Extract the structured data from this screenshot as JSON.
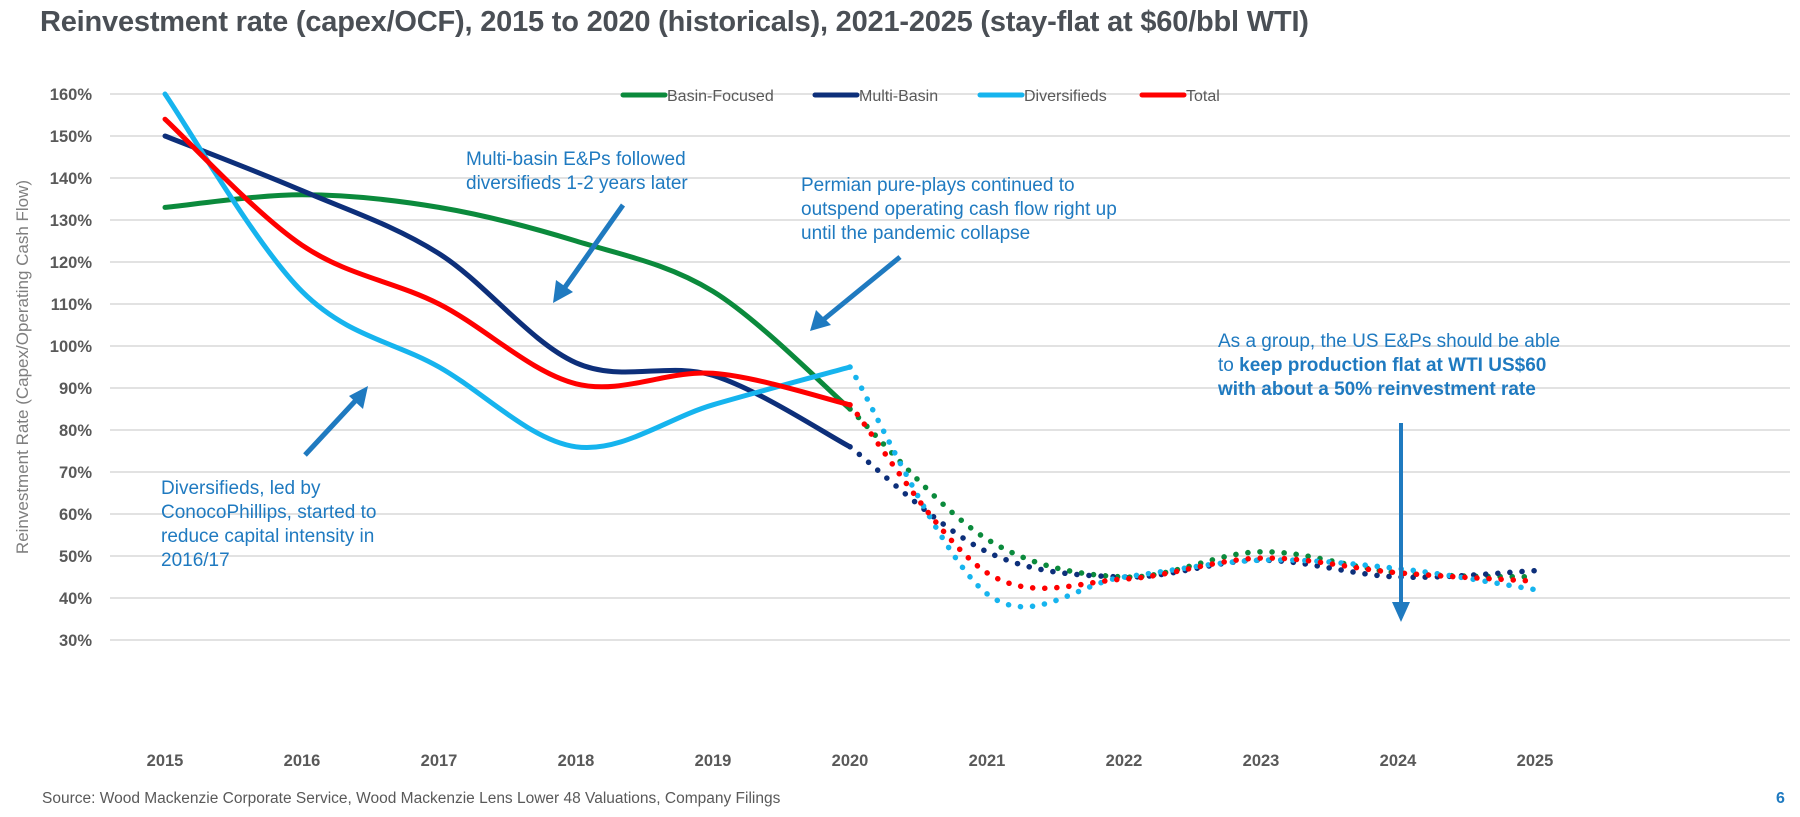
{
  "title": "Reinvestment rate (capex/OCF), 2015 to 2020 (historicals), 2021-2025 (stay-flat at $60/bbl WTI)",
  "source": "Source: Wood Mackenzie Corporate Service, Wood Mackenzie Lens Lower 48 Valuations, Company Filings",
  "page_number": "6",
  "annotations": {
    "multi_basin": "Multi-basin E&Ps followed diversifieds 1-2 years later",
    "multi_basin_line1": "Multi-basin E&Ps followed",
    "multi_basin_line2": "diversifieds 1-2 years later",
    "permian_line1": "Permian pure-plays continued to",
    "permian_line2": "outspend operating cash flow right up",
    "permian_line3": "until the pandemic collapse",
    "diversifieds_line1": "Diversifieds, led by",
    "diversifieds_line2": "ConocoPhillips, started to",
    "diversifieds_line3": "reduce capital intensity in",
    "diversifieds_line4": "2016/17",
    "group_line1": "As a group, the US E&Ps should be able",
    "group_line2_prefix": "to ",
    "group_line2_bold": "keep production flat at WTI US$60",
    "group_line3_bold": "with about a 50% reinvestment rate"
  },
  "chart_data": {
    "type": "line",
    "title": "Reinvestment rate (capex/OCF), 2015 to 2020 (historicals), 2021-2025 (stay-flat at $60/bbl WTI)",
    "xlabel": "",
    "ylabel": "Reinvestment Rate (Capex/Operating Cash Flow)",
    "x": [
      2015,
      2016,
      2017,
      2018,
      2019,
      2020,
      2021,
      2022,
      2023,
      2024,
      2025
    ],
    "x_tick_labels": [
      "2015",
      "2016",
      "2017",
      "2018",
      "2019",
      "2020",
      "2021",
      "2022",
      "2023",
      "2024",
      "2025"
    ],
    "y_tick_labels": [
      "160%",
      "150%",
      "140%",
      "130%",
      "120%",
      "110%",
      "100%",
      "90%",
      "80%",
      "70%",
      "60%",
      "50%",
      "40%",
      "30%"
    ],
    "ylim": [
      30,
      160
    ],
    "y_unit": "%",
    "historical_range": [
      2015,
      2020
    ],
    "forecast_range": [
      2020,
      2025
    ],
    "forecast_style": "dotted",
    "grid": true,
    "legend_position": "top-center",
    "series": [
      {
        "name": "Basin-Focused",
        "color": "#0b8a3c",
        "values": [
          133,
          136,
          133,
          125,
          113,
          85,
          54,
          45,
          51,
          46,
          45
        ]
      },
      {
        "name": "Multi-Basin",
        "color": "#0d2f7a",
        "values": [
          150,
          137,
          122,
          96,
          93,
          76,
          51,
          45,
          49,
          45,
          46.5
        ]
      },
      {
        "name": "Diversifieds",
        "color": "#16b4ee",
        "values": [
          160,
          113,
          95,
          76,
          86,
          95,
          41,
          45,
          49,
          47,
          42
        ]
      },
      {
        "name": "Total",
        "color": "#ff0000",
        "values": [
          154,
          124,
          110,
          91,
          93.5,
          86,
          46,
          44.5,
          49.5,
          46,
          44
        ]
      }
    ]
  },
  "colors": {
    "annotation": "#1f7ac0",
    "grid": "#e2e2e2",
    "axis_text": "#595959"
  }
}
